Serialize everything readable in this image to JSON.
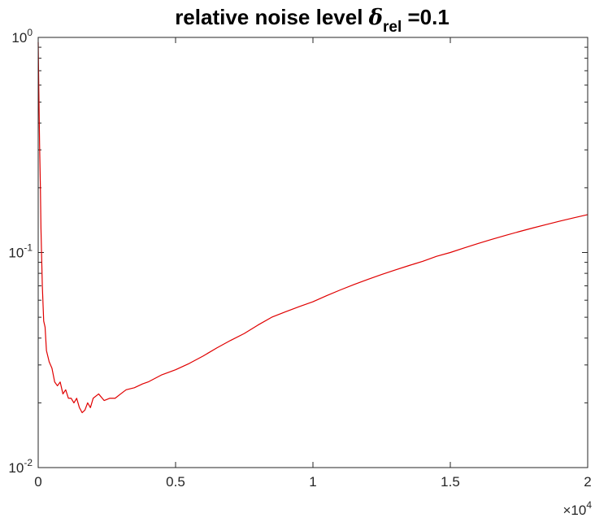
{
  "chart_data": {
    "type": "line",
    "title": {
      "text": "relative noise level ",
      "symbol": "δ",
      "subscript": "rel",
      "suffix": " =0.1"
    },
    "xlabel": "",
    "ylabel": "",
    "xlim": [
      0,
      20000
    ],
    "ylim": [
      0.01,
      1
    ],
    "yscale": "log",
    "grid": false,
    "x_exponent_label": {
      "base": "×10",
      "exp": "4"
    },
    "x_ticks": [
      {
        "value": 0,
        "label": "0"
      },
      {
        "value": 5000,
        "label": "0.5"
      },
      {
        "value": 10000,
        "label": "1"
      },
      {
        "value": 15000,
        "label": "1.5"
      },
      {
        "value": 20000,
        "label": "2"
      }
    ],
    "y_ticks": [
      {
        "value": 0.01,
        "base": "10",
        "exp": "-2"
      },
      {
        "value": 0.1,
        "base": "10",
        "exp": "-1"
      },
      {
        "value": 1,
        "base": "10",
        "exp": "0"
      }
    ],
    "series": [
      {
        "color": "#e00000",
        "x": [
          0,
          20,
          50,
          80,
          100,
          150,
          200,
          250,
          300,
          400,
          500,
          600,
          700,
          800,
          900,
          1000,
          1100,
          1200,
          1300,
          1400,
          1500,
          1600,
          1700,
          1800,
          1900,
          2000,
          2200,
          2400,
          2600,
          2800,
          3000,
          3200,
          3500,
          3800,
          4000,
          4500,
          5000,
          5500,
          6000,
          6500,
          7000,
          7500,
          8000,
          8500,
          9000,
          9500,
          10000,
          10500,
          11000,
          11500,
          12000,
          12500,
          13000,
          13500,
          14000,
          14500,
          15000,
          15500,
          16000,
          16500,
          17000,
          17500,
          18000,
          18500,
          19000,
          19500,
          20000
        ],
        "y": [
          0.95,
          0.6,
          0.32,
          0.2,
          0.13,
          0.07,
          0.048,
          0.045,
          0.035,
          0.031,
          0.029,
          0.025,
          0.024,
          0.025,
          0.022,
          0.023,
          0.021,
          0.021,
          0.02,
          0.021,
          0.019,
          0.018,
          0.0185,
          0.02,
          0.019,
          0.021,
          0.022,
          0.0205,
          0.021,
          0.021,
          0.022,
          0.023,
          0.0235,
          0.0245,
          0.025,
          0.027,
          0.0285,
          0.0305,
          0.033,
          0.036,
          0.039,
          0.042,
          0.046,
          0.05,
          0.053,
          0.056,
          0.059,
          0.063,
          0.067,
          0.071,
          0.075,
          0.079,
          0.083,
          0.087,
          0.091,
          0.096,
          0.1,
          0.105,
          0.11,
          0.115,
          0.12,
          0.125,
          0.13,
          0.135,
          0.14,
          0.145,
          0.15
        ]
      }
    ]
  }
}
